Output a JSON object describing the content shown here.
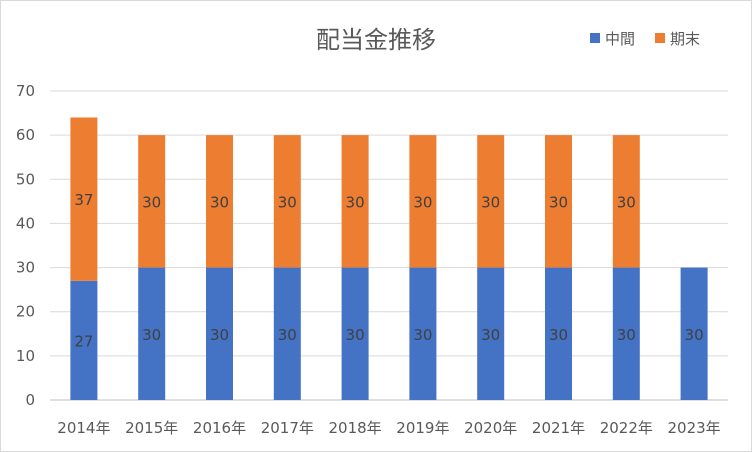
{
  "chart_data": {
    "type": "bar",
    "stacked": true,
    "title": "配当金推移",
    "xlabel": "",
    "ylabel": "",
    "ylim": [
      0,
      70
    ],
    "yticks": [
      0,
      10,
      20,
      30,
      40,
      50,
      60,
      70
    ],
    "grid": true,
    "legend_position": "top-right",
    "categories": [
      "2014年",
      "2015年",
      "2016年",
      "2017年",
      "2018年",
      "2019年",
      "2020年",
      "2021年",
      "2022年",
      "2023年"
    ],
    "series": [
      {
        "name": "中間",
        "color": "#4472C4",
        "values": [
          27,
          30,
          30,
          30,
          30,
          30,
          30,
          30,
          30,
          30
        ]
      },
      {
        "name": "期末",
        "color": "#ED7D31",
        "values": [
          37,
          30,
          30,
          30,
          30,
          30,
          30,
          30,
          30,
          null
        ]
      }
    ]
  }
}
